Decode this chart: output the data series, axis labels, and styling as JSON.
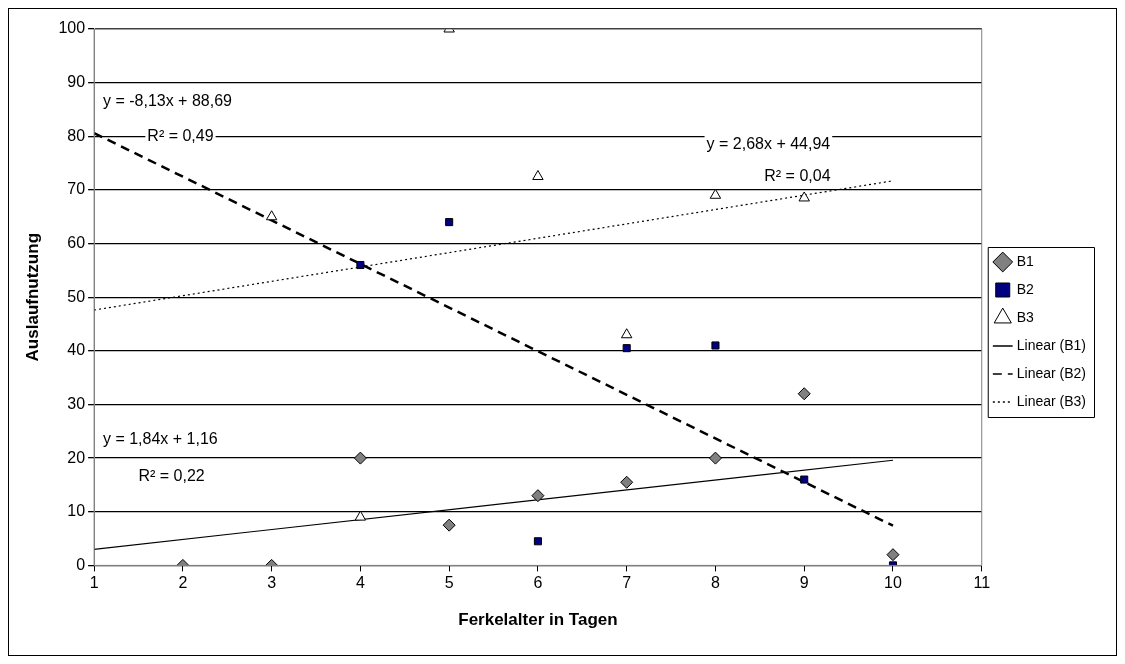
{
  "chart_data": {
    "type": "scatter",
    "xlabel": "Ferkelalter in Tagen",
    "ylabel": "Auslaufnutzung",
    "xlim": [
      1,
      11
    ],
    "xticks": [
      1,
      2,
      3,
      4,
      5,
      6,
      7,
      8,
      9,
      10,
      11
    ],
    "ylim": [
      0,
      100
    ],
    "yticks": [
      0,
      10,
      20,
      30,
      40,
      50,
      60,
      70,
      80,
      90,
      100
    ],
    "grid": "y",
    "legend": "right",
    "series": [
      {
        "name": "B1",
        "marker": "diamond",
        "color": "#808080",
        "x": [
          2,
          3,
          4,
          5,
          6,
          7,
          8,
          9,
          10
        ],
        "values": [
          0,
          0,
          20,
          7.5,
          13,
          15.5,
          20,
          32,
          2
        ]
      },
      {
        "name": "B2",
        "marker": "square",
        "color": "#000080",
        "x": [
          4,
          5,
          6,
          7,
          8,
          9,
          10
        ],
        "values": [
          56,
          64,
          4.5,
          40.5,
          41,
          16,
          0
        ]
      },
      {
        "name": "B3",
        "marker": "triangle",
        "color": "#ffffff",
        "x": [
          3,
          4,
          5,
          6,
          7,
          8,
          9
        ],
        "values": [
          65,
          9,
          100,
          72.5,
          43,
          69,
          68.5
        ]
      },
      {
        "name": "Linear (B1)",
        "type": "line",
        "marker": "none",
        "line_style": "solid",
        "color": "#000000",
        "x": [
          1,
          10
        ],
        "values": [
          3,
          19.6
        ]
      },
      {
        "name": "Linear (B2)",
        "type": "line",
        "marker": "none",
        "line_style": "dashed",
        "color": "#000000",
        "x": [
          1,
          10
        ],
        "values": [
          80.6,
          7.4
        ]
      },
      {
        "name": "Linear (B3)",
        "type": "line",
        "marker": "none",
        "line_style": "dotted",
        "color": "#000000",
        "x": [
          1,
          10
        ],
        "values": [
          47.6,
          71.7
        ]
      }
    ],
    "annotations": [
      "y = -8,13x + 88,69",
      "R² = 0,49",
      "y = 2,68x + 44,94",
      "R² = 0,04",
      "y = 1,84x + 1,16",
      "R² = 0,22"
    ]
  }
}
